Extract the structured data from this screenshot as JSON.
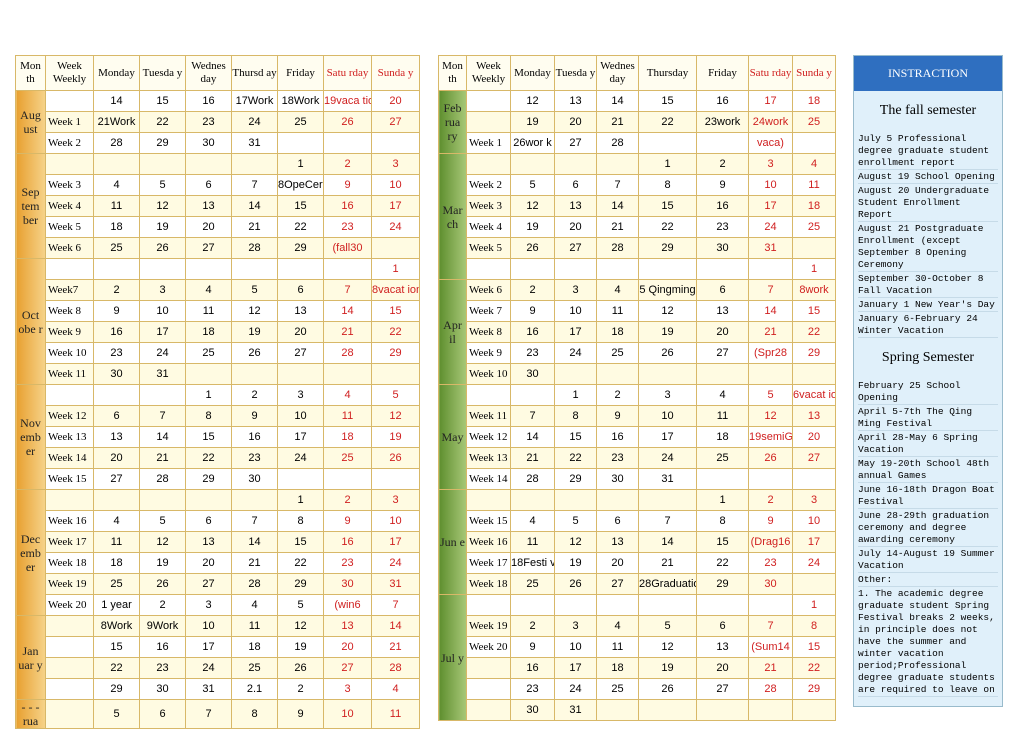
{
  "left_table": {
    "headers": [
      "Mon th",
      "Week Weekly",
      "Monday",
      "Tuesda y",
      "Wednes day",
      "Thursd ay",
      "Friday",
      "Satu rday",
      "Sunda y"
    ],
    "months": [
      {
        "label": "Aug ust",
        "rows": [
          {
            "week": null,
            "days": [
              14,
              15,
              16,
              "17Work",
              "18Work",
              "19vaca tion",
              20
            ]
          },
          {
            "week": "Week 1",
            "days": [
              "21Work",
              22,
              23,
              24,
              25,
              26,
              27
            ]
          },
          {
            "week": "Week 2",
            "days": [
              28,
              29,
              30,
              31,
              null,
              null,
              null
            ]
          }
        ]
      },
      {
        "label": "Sep tem ber",
        "rows": [
          {
            "week": null,
            "days": [
              null,
              null,
              null,
              null,
              1,
              2,
              3
            ]
          },
          {
            "week": "Week 3",
            "days": [
              4,
              5,
              6,
              7,
              "8OpeCeremon",
              9,
              10
            ]
          },
          {
            "week": "Week 4",
            "days": [
              11,
              12,
              13,
              14,
              15,
              16,
              17
            ]
          },
          {
            "week": "Week 5",
            "days": [
              18,
              19,
              20,
              21,
              22,
              23,
              24
            ]
          },
          {
            "week": "Week 6",
            "days": [
              25,
              26,
              27,
              28,
              29,
              "(fall30",
              null
            ]
          }
        ]
      },
      {
        "label": "Oct obe r",
        "rows": [
          {
            "week": null,
            "days": [
              null,
              null,
              null,
              null,
              null,
              null,
              1
            ]
          },
          {
            "week": "Week7",
            "days": [
              2,
              3,
              4,
              5,
              6,
              7,
              "8vacat ion"
            ]
          },
          {
            "week": "Week 8",
            "days": [
              9,
              10,
              11,
              12,
              13,
              14,
              15
            ]
          },
          {
            "week": "Week 9",
            "days": [
              16,
              17,
              18,
              19,
              20,
              21,
              22
            ]
          },
          {
            "week": "Week 10",
            "days": [
              23,
              24,
              25,
              26,
              27,
              28,
              29
            ]
          },
          {
            "week": "Week 11",
            "days": [
              30,
              31,
              null,
              null,
              null,
              null,
              null
            ]
          }
        ]
      },
      {
        "label": "Nov emb er",
        "rows": [
          {
            "week": null,
            "days": [
              null,
              null,
              1,
              2,
              3,
              4,
              5
            ]
          },
          {
            "week": "Week 12",
            "days": [
              6,
              7,
              8,
              9,
              10,
              11,
              12
            ]
          },
          {
            "week": "Week 13",
            "days": [
              13,
              14,
              15,
              16,
              17,
              18,
              19
            ]
          },
          {
            "week": "Week 14",
            "days": [
              20,
              21,
              22,
              23,
              24,
              25,
              26
            ]
          },
          {
            "week": "Week 15",
            "days": [
              27,
              28,
              29,
              30,
              null,
              null,
              null
            ]
          }
        ]
      },
      {
        "label": "Dec emb er",
        "rows": [
          {
            "week": null,
            "days": [
              null,
              null,
              null,
              null,
              1,
              2,
              3
            ]
          },
          {
            "week": "Week 16",
            "days": [
              4,
              5,
              6,
              7,
              8,
              9,
              10
            ]
          },
          {
            "week": "Week 17",
            "days": [
              11,
              12,
              13,
              14,
              15,
              16,
              17
            ]
          },
          {
            "week": "Week 18",
            "days": [
              18,
              19,
              20,
              21,
              22,
              23,
              24
            ]
          },
          {
            "week": "Week 19",
            "days": [
              25,
              26,
              27,
              28,
              29,
              30,
              31
            ]
          },
          {
            "week": "Week 20",
            "days": [
              "1 year",
              2,
              3,
              4,
              5,
              "(win6",
              7
            ]
          }
        ]
      },
      {
        "label": "Jan uar y",
        "rows": [
          {
            "week": null,
            "days": [
              "8Work",
              "9Work",
              10,
              11,
              12,
              13,
              14
            ]
          },
          {
            "week": null,
            "days": [
              15,
              16,
              17,
              18,
              19,
              20,
              21
            ]
          },
          {
            "week": null,
            "days": [
              22,
              23,
              24,
              25,
              26,
              27,
              28
            ]
          },
          {
            "week": null,
            "days": [
              29,
              30,
              31,
              "2.1",
              2,
              3,
              4
            ]
          }
        ]
      },
      {
        "label": "- - - rua",
        "rows": [
          {
            "week": null,
            "days": [
              5,
              6,
              7,
              8,
              9,
              10,
              11
            ]
          }
        ]
      }
    ]
  },
  "right_table": {
    "headers": [
      "Mon th",
      "Week Weekly",
      "Monday",
      "Tuesda y",
      "Wednes day",
      "Thursday",
      "Friday",
      "Satu rday",
      "Sunda y"
    ],
    "months": [
      {
        "label": "Feb rua ry",
        "rows": [
          {
            "week": null,
            "days": [
              12,
              13,
              14,
              15,
              16,
              17,
              18
            ]
          },
          {
            "week": null,
            "days": [
              19,
              20,
              21,
              22,
              "23work",
              "24work",
              25
            ]
          },
          {
            "week": "Week 1",
            "days": [
              "26wor k",
              27,
              28,
              null,
              null,
              "vaca)",
              null
            ]
          }
        ]
      },
      {
        "label": "Mar ch",
        "rows": [
          {
            "week": null,
            "days": [
              null,
              null,
              null,
              1,
              2,
              3,
              4
            ]
          },
          {
            "week": "Week 2",
            "days": [
              5,
              6,
              7,
              8,
              9,
              10,
              11
            ]
          },
          {
            "week": "Week 3",
            "days": [
              12,
              13,
              14,
              15,
              16,
              17,
              18
            ]
          },
          {
            "week": "Week 4",
            "days": [
              19,
              20,
              21,
              22,
              23,
              24,
              25
            ]
          },
          {
            "week": "Week 5",
            "days": [
              26,
              27,
              28,
              29,
              30,
              31,
              null
            ]
          },
          {
            "week": null,
            "days": [
              null,
              null,
              null,
              null,
              null,
              null,
              1
            ]
          }
        ]
      },
      {
        "label": "Apr il",
        "rows": [
          {
            "week": "Week 6",
            "days": [
              2,
              3,
              4,
              "5 Qingming",
              "6",
              7,
              "8work"
            ]
          },
          {
            "week": "Week 7",
            "days": [
              9,
              10,
              11,
              12,
              13,
              14,
              15
            ]
          },
          {
            "week": "Week 8",
            "days": [
              16,
              17,
              18,
              19,
              20,
              21,
              22
            ]
          },
          {
            "week": "Week 9",
            "days": [
              23,
              24,
              25,
              26,
              27,
              "(Spr28",
              29
            ]
          },
          {
            "week": "Week 10",
            "days": [
              30,
              null,
              null,
              null,
              null,
              null,
              null
            ]
          }
        ]
      },
      {
        "label": "May",
        "rows": [
          {
            "week": null,
            "days": [
              null,
              1,
              2,
              3,
              4,
              5,
              "6vacat ion)"
            ]
          },
          {
            "week": "Week 11",
            "days": [
              7,
              8,
              9,
              10,
              11,
              12,
              13
            ]
          },
          {
            "week": "Week 12",
            "days": [
              14,
              15,
              16,
              17,
              18,
              "19semiGames",
              20
            ]
          },
          {
            "week": "Week 13",
            "days": [
              21,
              22,
              23,
              24,
              25,
              26,
              27
            ]
          },
          {
            "week": "Week 14",
            "days": [
              28,
              29,
              30,
              31,
              null,
              null,
              null
            ]
          }
        ]
      },
      {
        "label": "Jun e",
        "rows": [
          {
            "week": null,
            "days": [
              null,
              null,
              null,
              null,
              1,
              2,
              3
            ]
          },
          {
            "week": "Week 15",
            "days": [
              4,
              5,
              6,
              7,
              8,
              9,
              10
            ]
          },
          {
            "week": "Week 16",
            "days": [
              11,
              12,
              13,
              14,
              15,
              "(Drag16",
              17
            ]
          },
          {
            "week": "Week 17",
            "days": [
              "18Festi val",
              19,
              20,
              21,
              22,
              23,
              24
            ]
          },
          {
            "week": "Week 18",
            "days": [
              25,
              26,
              27,
              "28Graduation",
              29,
              30,
              null
            ]
          }
        ]
      },
      {
        "label": "Jul y",
        "rows": [
          {
            "week": null,
            "days": [
              null,
              null,
              null,
              null,
              null,
              null,
              1
            ]
          },
          {
            "week": "Week 19",
            "days": [
              2,
              3,
              4,
              5,
              6,
              7,
              8
            ]
          },
          {
            "week": "Week 20",
            "days": [
              9,
              10,
              11,
              12,
              13,
              "(Sum14",
              15
            ]
          },
          {
            "week": null,
            "days": [
              16,
              17,
              18,
              19,
              20,
              21,
              22
            ]
          },
          {
            "week": null,
            "days": [
              23,
              24,
              25,
              26,
              27,
              28,
              29
            ]
          },
          {
            "week": null,
            "days": [
              30,
              31,
              null,
              null,
              null,
              null,
              null
            ]
          }
        ]
      }
    ]
  },
  "sidebar": {
    "title": "INSTRACTION",
    "fall_heading": "The fall semester",
    "fall_items": [
      "July 5 Professional degree graduate student enrollment report",
      "August 19 School Opening",
      "August 20 Undergraduate Student Enrollment Report",
      "August 21 Postgraduate Enrollment (except September 8 Opening Ceremony",
      "September 30-October 8 Fall Vacation",
      "January 1 New Year's Day",
      "January 6-February 24 Winter Vacation"
    ],
    "spring_heading": "Spring Semester",
    "spring_items": [
      "February 25 School Opening",
      "April 5-7th The Qing Ming Festival",
      "April 28-May 6 Spring Vacation",
      "May 19-20th School 48th annual Games",
      "June 16-18th Dragon Boat Festival",
      "June 28-29th graduation ceremony and degree awarding ceremony",
      "July 14-August 19 Summer Vacation"
    ],
    "other_heading": "Other:",
    "other_items": [
      "1. The academic degree graduate student Spring Festival breaks 2 weeks, in principle does not have the summer and winter vacation period;Professional degree graduate students are required to leave on"
    ]
  }
}
